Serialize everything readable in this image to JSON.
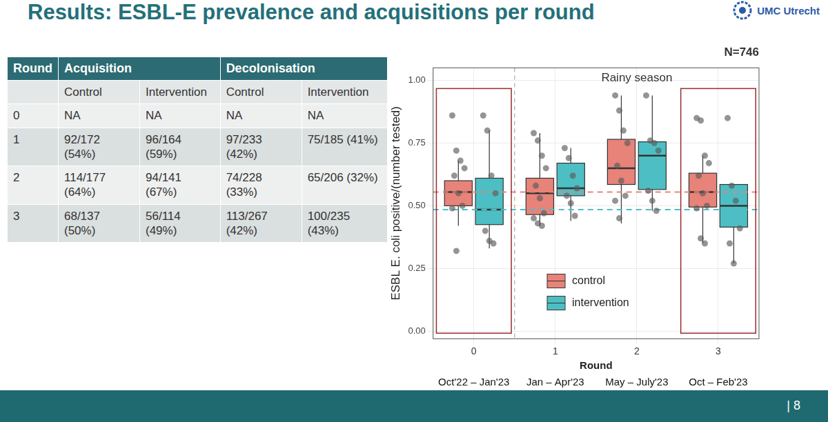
{
  "header": {
    "title": "Results: ESBL-E prevalence and acquisitions per round",
    "logo_text": "UMC Utrecht"
  },
  "table": {
    "group_headers": [
      "Round",
      "Acquisition",
      "Decolonisation"
    ],
    "sub_headers": [
      "Control",
      "Intervention",
      "Control",
      "Intervention"
    ],
    "rows": [
      [
        "0",
        "NA",
        "NA",
        "NA",
        "NA"
      ],
      [
        "1",
        "92/172 (54%)",
        "96/164 (59%)",
        "97/233 (42%)",
        "75/185 (41%)"
      ],
      [
        "2",
        "114/177 (64%)",
        "94/141 (67%)",
        "74/228 (33%)",
        "65/206 (32%)"
      ],
      [
        "3",
        "68/137 (50%)",
        "56/114 (49%)",
        "113/267 (42%)",
        "100/235 (43%)"
      ]
    ]
  },
  "chart_data": {
    "type": "boxplot",
    "title": "N=746",
    "annotations": [
      "Rainy season"
    ],
    "x_label": "Round",
    "y_label": "ESBL E. coli positive/(number tested)",
    "categories": [
      "0",
      "1",
      "2",
      "3"
    ],
    "period_labels": [
      "Oct'22 – Jan'23",
      "Jan – Apr'23",
      "May – July'23",
      "Oct – Feb'23"
    ],
    "ylim": [
      -0.03,
      1.05
    ],
    "yticks": [
      {
        "value": 0,
        "label": "0.00"
      },
      {
        "value": 0.25,
        "label": "0.25"
      },
      {
        "value": 0.5,
        "label": "0.50"
      },
      {
        "value": 0.75,
        "label": "0.75"
      },
      {
        "value": 1,
        "label": "1.00"
      }
    ],
    "grid": true,
    "legend": "bottom",
    "series": [
      {
        "name": "control",
        "color": "#E8837A",
        "baseline": 0.555,
        "boxes": [
          {
            "min": 0.42,
            "q1": 0.5,
            "median": 0.555,
            "q3": 0.6,
            "max": 0.68,
            "points": [
              0.86,
              0.72,
              0.68,
              0.65,
              0.62,
              0.55,
              0.5,
              0.49,
              0.32
            ]
          },
          {
            "min": 0.42,
            "q1": 0.465,
            "median": 0.55,
            "q3": 0.61,
            "max": 0.79,
            "points": [
              0.79,
              0.76,
              0.7,
              0.65,
              0.58,
              0.53,
              0.47,
              0.45,
              0.43,
              0.42
            ]
          },
          {
            "min": 0.43,
            "q1": 0.585,
            "median": 0.65,
            "q3": 0.765,
            "max": 0.94,
            "points": [
              0.94,
              0.88,
              0.8,
              0.75,
              0.66,
              0.6,
              0.54,
              0.52,
              0.45
            ]
          },
          {
            "min": 0.35,
            "q1": 0.495,
            "median": 0.555,
            "q3": 0.63,
            "max": 0.7,
            "points": [
              0.85,
              0.84,
              0.7,
              0.67,
              0.62,
              0.55,
              0.5,
              0.49,
              0.37,
              0.35
            ]
          }
        ]
      },
      {
        "name": "intervention",
        "color": "#4DBFC4",
        "baseline": 0.485,
        "boxes": [
          {
            "min": 0.33,
            "q1": 0.425,
            "median": 0.485,
            "q3": 0.61,
            "max": 0.8,
            "points": [
              0.86,
              0.8,
              0.62,
              0.55,
              0.4,
              0.36,
              0.35
            ]
          },
          {
            "min": 0.44,
            "q1": 0.54,
            "median": 0.57,
            "q3": 0.67,
            "max": 0.73,
            "points": [
              0.73,
              0.69,
              0.62,
              0.57,
              0.54,
              0.51,
              0.46
            ]
          },
          {
            "min": 0.48,
            "q1": 0.565,
            "median": 0.7,
            "q3": 0.755,
            "max": 0.94,
            "points": [
              0.94,
              0.76,
              0.75,
              0.72,
              0.56,
              0.52,
              0.48
            ]
          },
          {
            "min": 0.27,
            "q1": 0.415,
            "median": 0.5,
            "q3": 0.585,
            "max": 0.585,
            "points": [
              0.85,
              0.58,
              0.52,
              0.41,
              0.35,
              0.27
            ]
          }
        ]
      }
    ]
  },
  "footer": {
    "page": "| 8"
  }
}
